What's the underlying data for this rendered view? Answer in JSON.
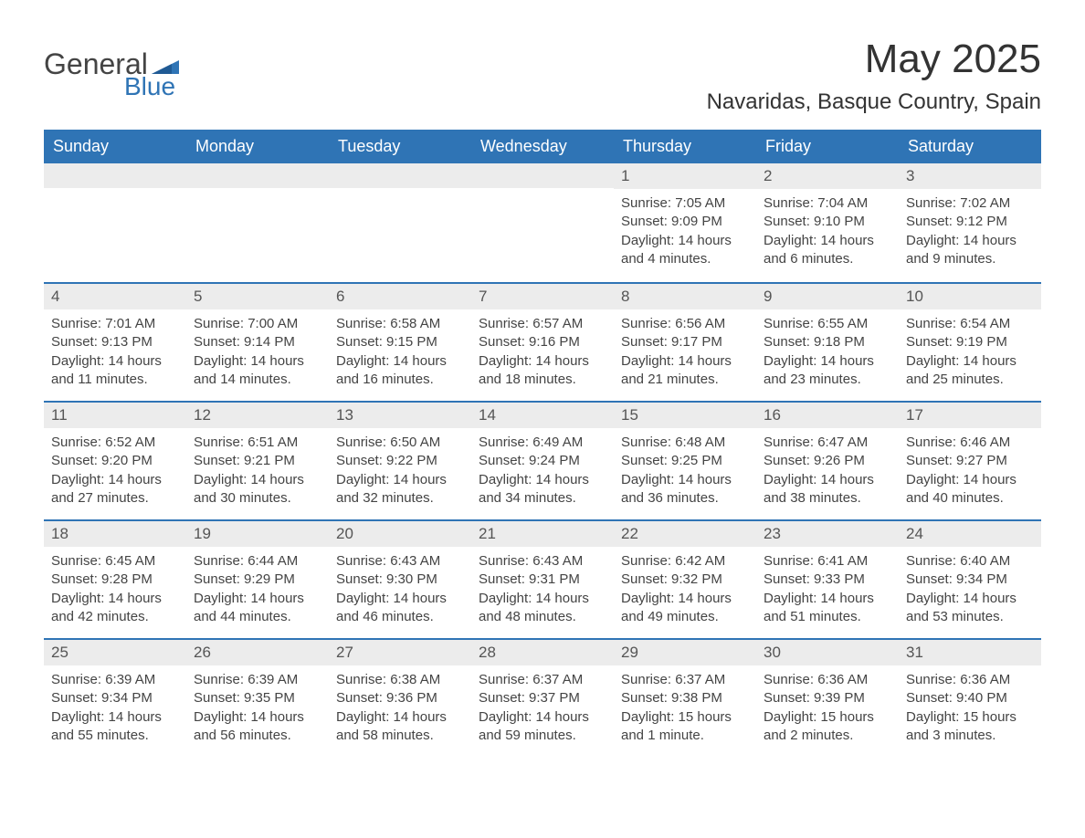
{
  "brand": {
    "name_main": "General",
    "name_sub": "Blue",
    "accent_color": "#2f74b5",
    "text_color": "#444444"
  },
  "title": "May 2025",
  "location": "Navaridas, Basque Country, Spain",
  "calendar": {
    "type": "table",
    "header_bg": "#2f74b5",
    "header_fg": "#ffffff",
    "daynum_bg": "#ececec",
    "row_border_color": "#2f74b5",
    "columns": [
      "Sunday",
      "Monday",
      "Tuesday",
      "Wednesday",
      "Thursday",
      "Friday",
      "Saturday"
    ],
    "weeks": [
      [
        null,
        null,
        null,
        null,
        {
          "n": "1",
          "sunrise": "7:05 AM",
          "sunset": "9:09 PM",
          "daylight": "14 hours and 4 minutes."
        },
        {
          "n": "2",
          "sunrise": "7:04 AM",
          "sunset": "9:10 PM",
          "daylight": "14 hours and 6 minutes."
        },
        {
          "n": "3",
          "sunrise": "7:02 AM",
          "sunset": "9:12 PM",
          "daylight": "14 hours and 9 minutes."
        }
      ],
      [
        {
          "n": "4",
          "sunrise": "7:01 AM",
          "sunset": "9:13 PM",
          "daylight": "14 hours and 11 minutes."
        },
        {
          "n": "5",
          "sunrise": "7:00 AM",
          "sunset": "9:14 PM",
          "daylight": "14 hours and 14 minutes."
        },
        {
          "n": "6",
          "sunrise": "6:58 AM",
          "sunset": "9:15 PM",
          "daylight": "14 hours and 16 minutes."
        },
        {
          "n": "7",
          "sunrise": "6:57 AM",
          "sunset": "9:16 PM",
          "daylight": "14 hours and 18 minutes."
        },
        {
          "n": "8",
          "sunrise": "6:56 AM",
          "sunset": "9:17 PM",
          "daylight": "14 hours and 21 minutes."
        },
        {
          "n": "9",
          "sunrise": "6:55 AM",
          "sunset": "9:18 PM",
          "daylight": "14 hours and 23 minutes."
        },
        {
          "n": "10",
          "sunrise": "6:54 AM",
          "sunset": "9:19 PM",
          "daylight": "14 hours and 25 minutes."
        }
      ],
      [
        {
          "n": "11",
          "sunrise": "6:52 AM",
          "sunset": "9:20 PM",
          "daylight": "14 hours and 27 minutes."
        },
        {
          "n": "12",
          "sunrise": "6:51 AM",
          "sunset": "9:21 PM",
          "daylight": "14 hours and 30 minutes."
        },
        {
          "n": "13",
          "sunrise": "6:50 AM",
          "sunset": "9:22 PM",
          "daylight": "14 hours and 32 minutes."
        },
        {
          "n": "14",
          "sunrise": "6:49 AM",
          "sunset": "9:24 PM",
          "daylight": "14 hours and 34 minutes."
        },
        {
          "n": "15",
          "sunrise": "6:48 AM",
          "sunset": "9:25 PM",
          "daylight": "14 hours and 36 minutes."
        },
        {
          "n": "16",
          "sunrise": "6:47 AM",
          "sunset": "9:26 PM",
          "daylight": "14 hours and 38 minutes."
        },
        {
          "n": "17",
          "sunrise": "6:46 AM",
          "sunset": "9:27 PM",
          "daylight": "14 hours and 40 minutes."
        }
      ],
      [
        {
          "n": "18",
          "sunrise": "6:45 AM",
          "sunset": "9:28 PM",
          "daylight": "14 hours and 42 minutes."
        },
        {
          "n": "19",
          "sunrise": "6:44 AM",
          "sunset": "9:29 PM",
          "daylight": "14 hours and 44 minutes."
        },
        {
          "n": "20",
          "sunrise": "6:43 AM",
          "sunset": "9:30 PM",
          "daylight": "14 hours and 46 minutes."
        },
        {
          "n": "21",
          "sunrise": "6:43 AM",
          "sunset": "9:31 PM",
          "daylight": "14 hours and 48 minutes."
        },
        {
          "n": "22",
          "sunrise": "6:42 AM",
          "sunset": "9:32 PM",
          "daylight": "14 hours and 49 minutes."
        },
        {
          "n": "23",
          "sunrise": "6:41 AM",
          "sunset": "9:33 PM",
          "daylight": "14 hours and 51 minutes."
        },
        {
          "n": "24",
          "sunrise": "6:40 AM",
          "sunset": "9:34 PM",
          "daylight": "14 hours and 53 minutes."
        }
      ],
      [
        {
          "n": "25",
          "sunrise": "6:39 AM",
          "sunset": "9:34 PM",
          "daylight": "14 hours and 55 minutes."
        },
        {
          "n": "26",
          "sunrise": "6:39 AM",
          "sunset": "9:35 PM",
          "daylight": "14 hours and 56 minutes."
        },
        {
          "n": "27",
          "sunrise": "6:38 AM",
          "sunset": "9:36 PM",
          "daylight": "14 hours and 58 minutes."
        },
        {
          "n": "28",
          "sunrise": "6:37 AM",
          "sunset": "9:37 PM",
          "daylight": "14 hours and 59 minutes."
        },
        {
          "n": "29",
          "sunrise": "6:37 AM",
          "sunset": "9:38 PM",
          "daylight": "15 hours and 1 minute."
        },
        {
          "n": "30",
          "sunrise": "6:36 AM",
          "sunset": "9:39 PM",
          "daylight": "15 hours and 2 minutes."
        },
        {
          "n": "31",
          "sunrise": "6:36 AM",
          "sunset": "9:40 PM",
          "daylight": "15 hours and 3 minutes."
        }
      ]
    ],
    "labels": {
      "sunrise": "Sunrise:",
      "sunset": "Sunset:",
      "daylight": "Daylight:"
    }
  }
}
